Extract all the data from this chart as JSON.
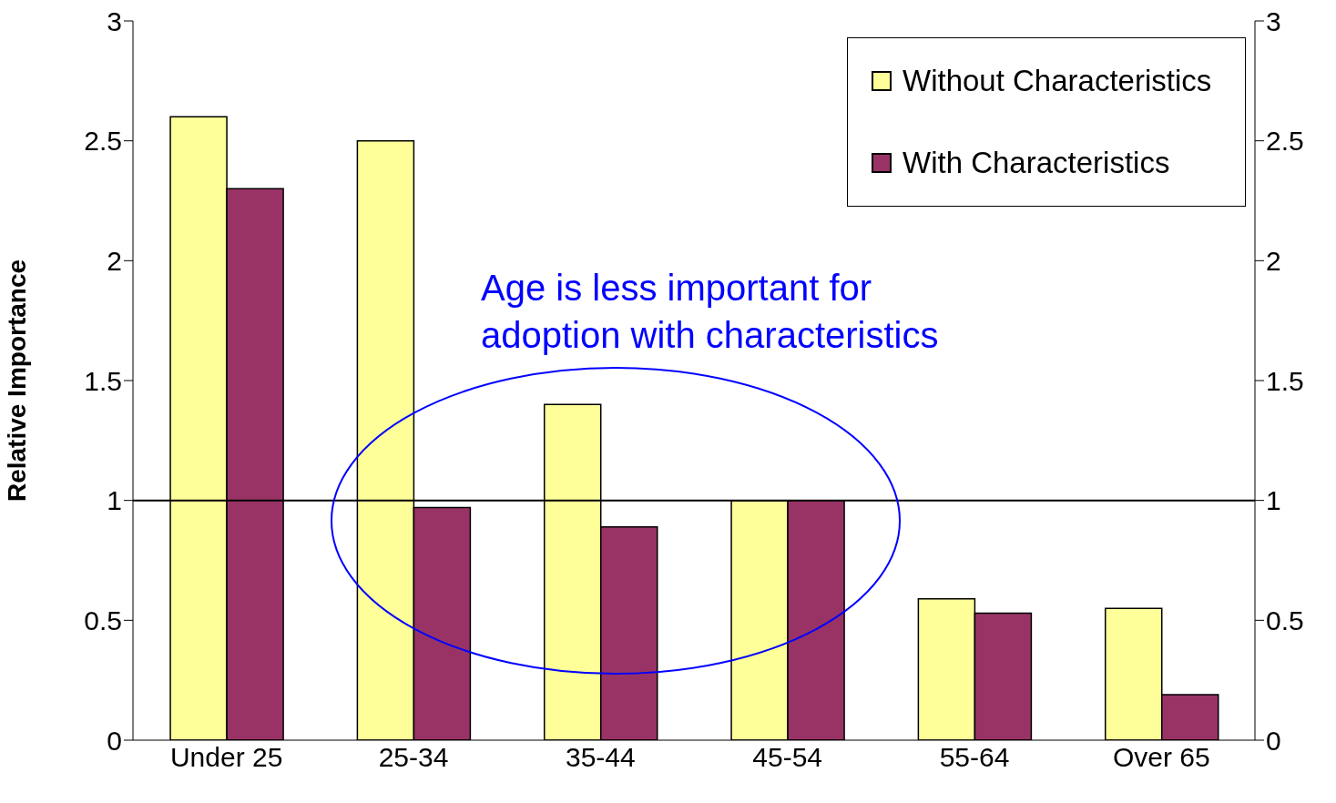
{
  "chart_data": {
    "type": "bar",
    "ylabel": "Relative Importance",
    "categories": [
      "Under 25",
      "25-34",
      "35-44",
      "45-54",
      "55-64",
      "Over 65"
    ],
    "series": [
      {
        "name": "Without Characteristics",
        "color": "#ffff99",
        "values": [
          2.6,
          2.5,
          1.4,
          1.0,
          0.59,
          0.55
        ]
      },
      {
        "name": "With Characteristics",
        "color": "#993366",
        "values": [
          2.3,
          0.97,
          0.89,
          1.0,
          0.53,
          0.19
        ]
      }
    ],
    "ylim": [
      0,
      3
    ],
    "yticks": [
      0,
      0.5,
      1,
      1.5,
      2,
      2.5,
      3
    ],
    "y2lim": [
      0,
      3
    ],
    "y2ticks": [
      0,
      0.5,
      1,
      1.5,
      2,
      2.5,
      3
    ],
    "ref_lines": [
      {
        "axis": "y",
        "value": 1,
        "color": "#000000"
      }
    ],
    "annotations": [
      "Age is less important for adoption with characteristics"
    ],
    "grid": false,
    "legend": "top right"
  }
}
